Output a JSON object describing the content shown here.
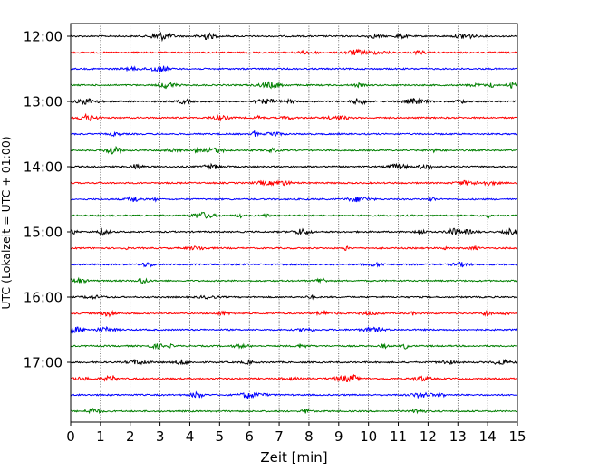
{
  "chart_data": {
    "type": "line",
    "title": "",
    "xlabel": "Zeit  [min]",
    "ylabel": "UTC (Lokalzeit = UTC + 01:00)",
    "xlim": [
      0,
      15
    ],
    "xticks": [
      "0",
      "1",
      "2",
      "3",
      "4",
      "5",
      "6",
      "7",
      "8",
      "9",
      "10",
      "11",
      "12",
      "13",
      "14",
      "15"
    ],
    "yticks": [
      "12:00",
      "13:00",
      "14:00",
      "15:00",
      "16:00",
      "17:00"
    ],
    "grid": "vertical dotted at each minute",
    "traces_per_hour": 4,
    "trace_interval_min": 15,
    "first_trace": "12:00",
    "last_trace": "17:45",
    "trace_colors": [
      "#000000",
      "#ff0000",
      "#0000ff",
      "#007f00"
    ],
    "series_description": "24 seismogram traces, one per 15-minute window from 12:00 to 17:45 UTC, each showing low-amplitude noise"
  }
}
